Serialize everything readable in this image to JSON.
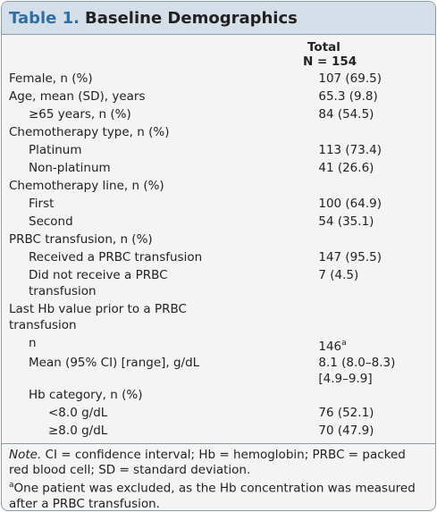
{
  "table": {
    "label": "Table 1.",
    "title": "Baseline Demographics",
    "column_header": [
      "Total",
      "N = 154"
    ],
    "rows": [
      {
        "label": "Female, n (%)",
        "value": "107 (69.5)"
      },
      {
        "label": "Age, mean (SD), years",
        "value": "65.3 (9.8)"
      },
      {
        "label": "≥65 years, n (%)",
        "value": "84 (54.5)"
      },
      {
        "label": "Chemotherapy type, n (%)",
        "value": null
      },
      {
        "label": "Platinum",
        "value": "113 (73.4)"
      },
      {
        "label": "Non-platinum",
        "value": "41 (26.6)"
      },
      {
        "label": "Chemotherapy line, n (%)",
        "value": null
      },
      {
        "label": "First",
        "value": "100 (64.9)"
      },
      {
        "label": "Second",
        "value": "54 (35.1)"
      },
      {
        "label": "PRBC transfusion, n (%)",
        "value": null
      },
      {
        "label": "Received a PRBC transfusion",
        "value": "147 (95.5)"
      },
      {
        "label": "Did not receive a PRBC transfusion",
        "value": "7 (4.5)"
      },
      {
        "label": "Last Hb value prior to a PRBC transfusion",
        "value": null
      },
      {
        "label": "n",
        "value": "146",
        "marker": "a"
      },
      {
        "label": "Mean (95% CI) [range], g/dL",
        "value": "8.1 (8.0–8.3) [4.9–9.9]"
      },
      {
        "label": "Hb category, n (%)",
        "value": null
      },
      {
        "label": "<8.0 g/dL",
        "value": "76 (52.1)"
      },
      {
        "label": "≥8.0 g/dL",
        "value": "70 (47.9)"
      }
    ],
    "note_label": "Note.",
    "note": "CI = confidence interval; Hb = hemoglobin; PRBC = packed red blood cell; SD = standard deviation.",
    "footnote_marker": "a",
    "footnote": "One patient was excluded, as the Hb concentration was measured after a PRBC transfusion."
  }
}
